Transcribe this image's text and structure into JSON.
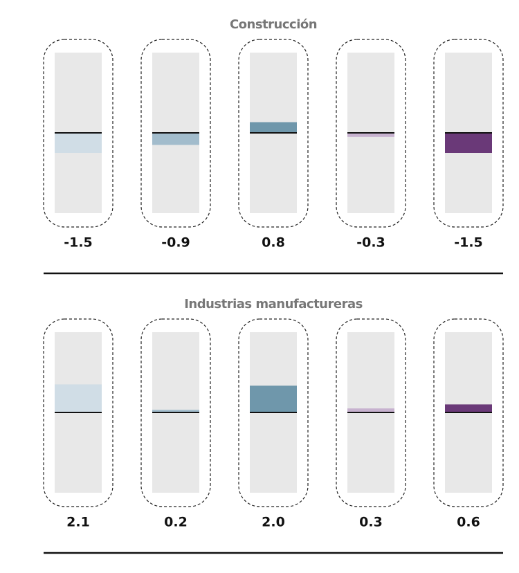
{
  "chart_data": [
    {
      "type": "bar",
      "title": "Construcción",
      "values": [
        -1.5,
        -0.9,
        0.8,
        -0.3,
        -1.5
      ],
      "value_labels": [
        "-1.5",
        "-0.9",
        "0.8",
        "-0.3",
        "-1.5"
      ],
      "colors": [
        "#d0dde6",
        "#a2bccc",
        "#6f97ab",
        "#c7b2cf",
        "#6a3978"
      ],
      "ylim": [
        -6,
        6
      ]
    },
    {
      "type": "bar",
      "title": "Industrias manufactureras",
      "values": [
        2.1,
        0.2,
        2.0,
        0.3,
        0.6
      ],
      "value_labels": [
        "2.1",
        "0.2",
        "2.0",
        "0.3",
        "0.6"
      ],
      "colors": [
        "#d0dde6",
        "#a2bccc",
        "#6f97ab",
        "#c7b2cf",
        "#6a3978"
      ],
      "ylim": [
        -6,
        6
      ]
    }
  ]
}
